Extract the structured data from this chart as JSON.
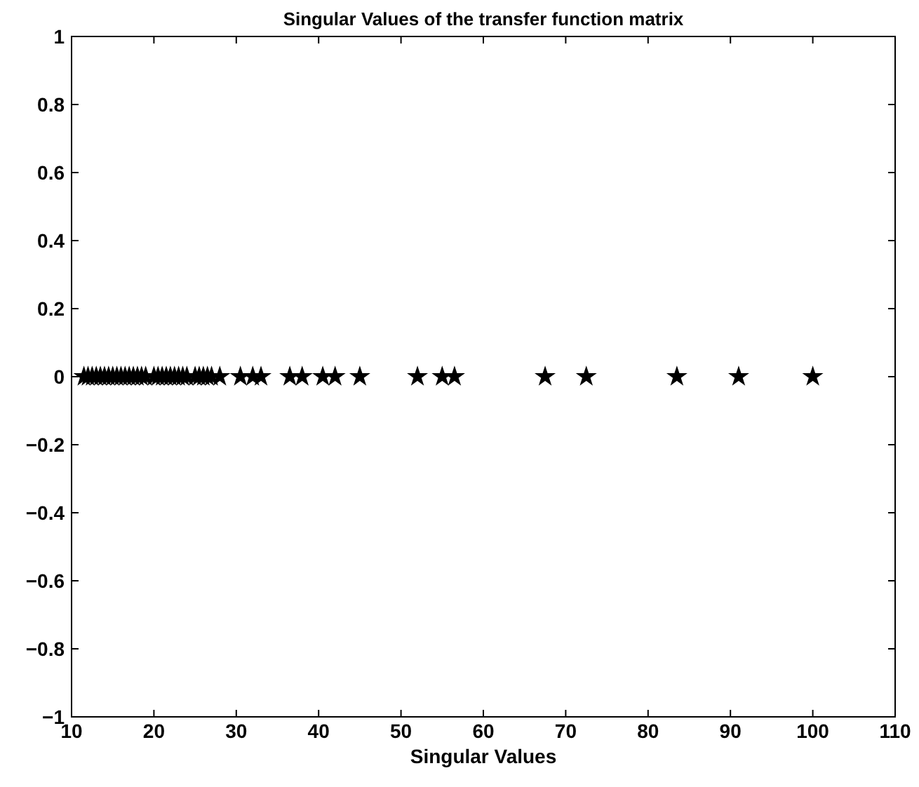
{
  "chart_data": {
    "type": "scatter",
    "title": "Singular Values of the transfer function matrix",
    "xlabel": "Singular Values",
    "x": [
      11.5,
      12,
      12.5,
      13,
      13.5,
      14,
      14.5,
      15,
      15.5,
      16,
      16.5,
      17,
      17.5,
      18,
      18.5,
      19,
      20,
      20.5,
      21,
      21.5,
      22,
      22.5,
      23,
      23.5,
      24,
      25,
      25.5,
      26,
      26.5,
      27,
      28,
      30.5,
      32,
      33,
      36.5,
      38,
      40.5,
      42,
      45,
      52,
      55,
      56.5,
      67.5,
      72.5,
      83.5,
      91,
      100
    ],
    "values": [
      0,
      0,
      0,
      0,
      0,
      0,
      0,
      0,
      0,
      0,
      0,
      0,
      0,
      0,
      0,
      0,
      0,
      0,
      0,
      0,
      0,
      0,
      0,
      0,
      0,
      0,
      0,
      0,
      0,
      0,
      0,
      0,
      0,
      0,
      0,
      0,
      0,
      0,
      0,
      0,
      0,
      0,
      0,
      0,
      0,
      0,
      0
    ],
    "color": "#000000",
    "marker": "star",
    "xlim": [
      10,
      110
    ],
    "xticks": [
      10,
      20,
      30,
      40,
      50,
      60,
      70,
      80,
      90,
      100,
      110
    ],
    "ylim": [
      -1,
      1
    ],
    "yticks": [
      -1,
      -0.8,
      -0.6,
      -0.4,
      -0.2,
      0,
      0.2,
      0.4,
      0.6,
      0.8,
      1
    ]
  }
}
